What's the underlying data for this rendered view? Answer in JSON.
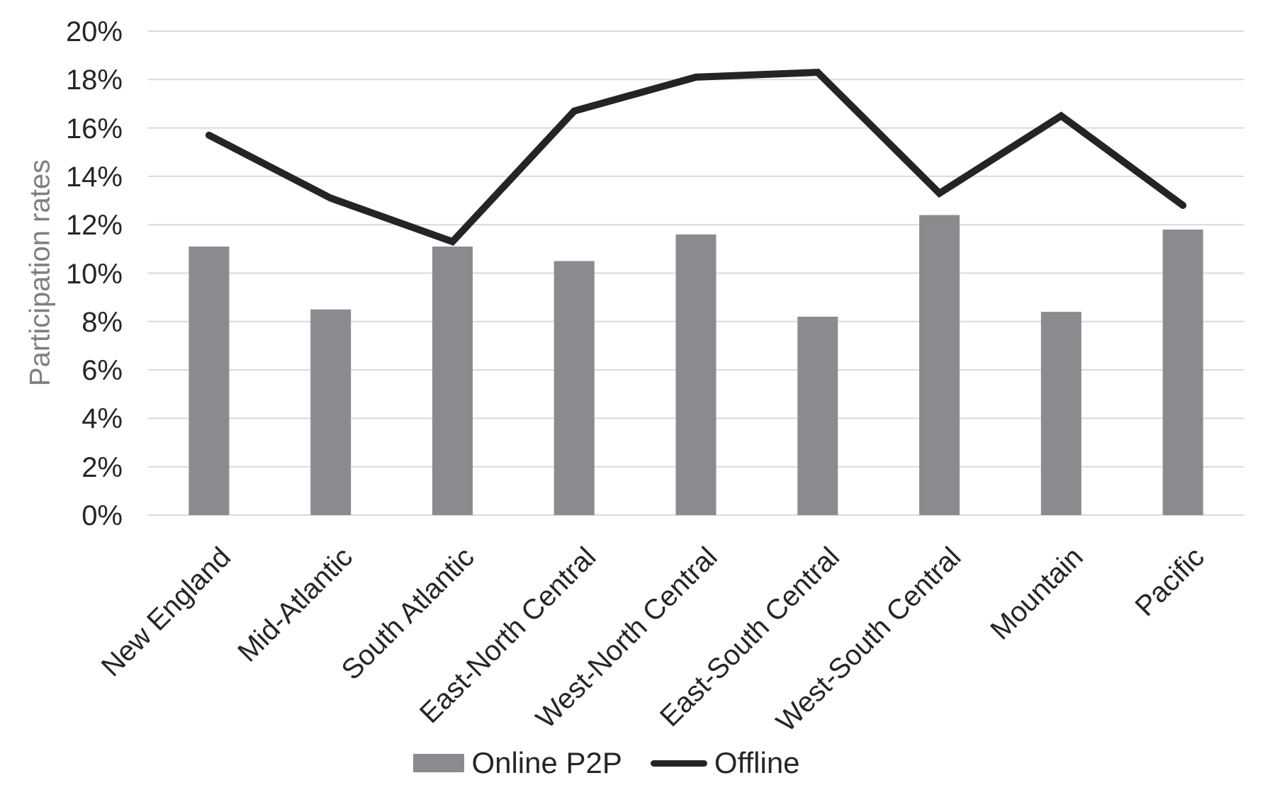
{
  "chart_data": {
    "type": "combo",
    "title": "",
    "xlabel": "",
    "ylabel": "Participation rates",
    "categories": [
      "New England",
      "Mid-Atlantic",
      "South Atlantic",
      "East-North Central",
      "West-North Central",
      "East-South Central",
      "West-South Central",
      "Mountain",
      "Pacific"
    ],
    "series": [
      {
        "name": "Online P2P",
        "type": "bar",
        "color": "#898B8F",
        "values": [
          11.1,
          8.5,
          11.1,
          10.5,
          11.6,
          8.2,
          12.4,
          8.4,
          11.8
        ]
      },
      {
        "name": "Offline",
        "type": "line",
        "color": "#242424",
        "values": [
          15.7,
          13.1,
          11.3,
          16.7,
          18.1,
          18.3,
          13.3,
          16.5,
          12.8
        ]
      }
    ],
    "ylim": [
      0,
      20
    ],
    "y_tick_step": 2,
    "y_tick_labels": [
      "0%",
      "2%",
      "4%",
      "6%",
      "8%",
      "10%",
      "12%",
      "14%",
      "16%",
      "18%",
      "20%"
    ],
    "grid": true,
    "legend_position": "bottom",
    "colors": {
      "background": "#FFFFFF",
      "gridline": "#D9D9D9",
      "tick_text": "#262626",
      "axis_title_text": "#7F7F7F",
      "legend_text": "#262626"
    }
  }
}
